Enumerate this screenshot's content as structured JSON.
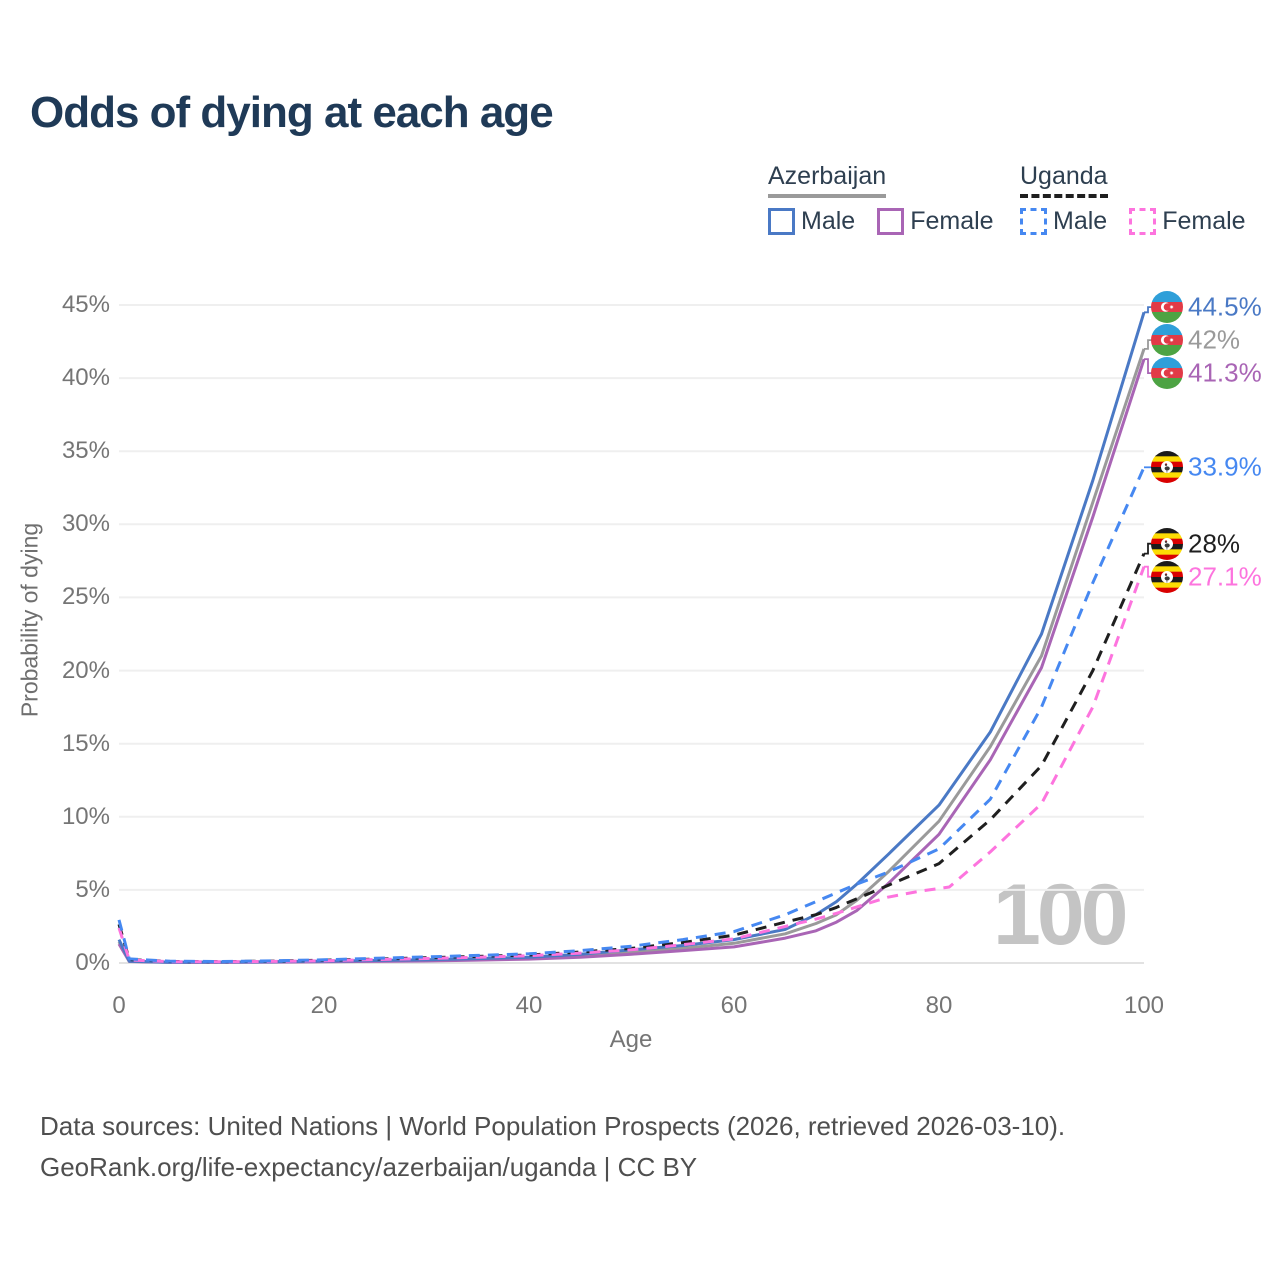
{
  "title": "Odds of dying at each age",
  "watermark": "100",
  "legend": {
    "groups": [
      {
        "label": "Azerbaijan",
        "line_style": "solid",
        "underline_color": "#9a9a9a",
        "items": [
          {
            "label": "Male",
            "color": "#4a79c5"
          },
          {
            "label": "Female",
            "color": "#a965b5"
          }
        ]
      },
      {
        "label": "Uganda",
        "line_style": "dashed",
        "underline_color": "#1f1f1f",
        "items": [
          {
            "label": "Male",
            "color": "#4688f1"
          },
          {
            "label": "Female",
            "color": "#fd74de"
          }
        ]
      }
    ]
  },
  "footer": {
    "line1": "Data sources: United Nations | World Population Prospects (2026, retrieved 2026-03-10).",
    "line2": "GeoRank.org/life-expectancy/azerbaijan/uganda | CC BY"
  },
  "chart_data": {
    "type": "line",
    "title": "Odds of dying at each age",
    "xlabel": "Age",
    "ylabel": "Probability of dying",
    "xlim": [
      0,
      100
    ],
    "ylim": [
      0,
      45
    ],
    "xticks": [
      0,
      20,
      40,
      60,
      80,
      100
    ],
    "yticks": [
      0,
      5,
      10,
      15,
      20,
      25,
      30,
      35,
      40,
      45
    ],
    "grid": true,
    "legend_position": "top-right",
    "y_unit": "%",
    "series": [
      {
        "slug": "azerbaijan-male",
        "name": "Azerbaijan — Male",
        "country": "Azerbaijan",
        "color": "#4a79c5",
        "dash": false,
        "flag": "az",
        "end_label": "44.5%",
        "end_value": 44.5,
        "points": [
          [
            0,
            1.6
          ],
          [
            1,
            0.12
          ],
          [
            5,
            0.05
          ],
          [
            10,
            0.06
          ],
          [
            15,
            0.09
          ],
          [
            20,
            0.13
          ],
          [
            25,
            0.17
          ],
          [
            30,
            0.22
          ],
          [
            35,
            0.3
          ],
          [
            40,
            0.4
          ],
          [
            45,
            0.6
          ],
          [
            50,
            0.9
          ],
          [
            55,
            1.2
          ],
          [
            60,
            1.6
          ],
          [
            65,
            2.3
          ],
          [
            68,
            3.3
          ],
          [
            70,
            4.2
          ],
          [
            72,
            5.4
          ],
          [
            75,
            7.4
          ],
          [
            80,
            10.8
          ],
          [
            85,
            15.8
          ],
          [
            90,
            22.5
          ],
          [
            95,
            33
          ],
          [
            100,
            44.5
          ]
        ]
      },
      {
        "slug": "azerbaijan-both",
        "name": "Azerbaijan — Both sexes",
        "country": "Azerbaijan",
        "color": "#9a9a9a",
        "dash": false,
        "flag": "az",
        "end_label": "42%",
        "end_value": 42,
        "points": [
          [
            0,
            1.45
          ],
          [
            1,
            0.11
          ],
          [
            5,
            0.045
          ],
          [
            10,
            0.05
          ],
          [
            15,
            0.08
          ],
          [
            20,
            0.11
          ],
          [
            25,
            0.14
          ],
          [
            30,
            0.18
          ],
          [
            35,
            0.25
          ],
          [
            40,
            0.33
          ],
          [
            45,
            0.5
          ],
          [
            50,
            0.75
          ],
          [
            55,
            1.0
          ],
          [
            60,
            1.35
          ],
          [
            65,
            2.0
          ],
          [
            68,
            2.7
          ],
          [
            70,
            3.3
          ],
          [
            72,
            4.3
          ],
          [
            75,
            6.2
          ],
          [
            80,
            9.7
          ],
          [
            85,
            14.8
          ],
          [
            90,
            21
          ],
          [
            95,
            31.5
          ],
          [
            100,
            42
          ]
        ]
      },
      {
        "slug": "azerbaijan-female",
        "name": "Azerbaijan — Female",
        "country": "Azerbaijan",
        "color": "#a965b5",
        "dash": false,
        "flag": "az",
        "end_label": "41.3%",
        "end_value": 41.3,
        "points": [
          [
            0,
            1.3
          ],
          [
            1,
            0.1
          ],
          [
            5,
            0.04
          ],
          [
            10,
            0.04
          ],
          [
            15,
            0.06
          ],
          [
            20,
            0.09
          ],
          [
            25,
            0.11
          ],
          [
            30,
            0.14
          ],
          [
            35,
            0.2
          ],
          [
            40,
            0.27
          ],
          [
            45,
            0.4
          ],
          [
            50,
            0.6
          ],
          [
            55,
            0.85
          ],
          [
            60,
            1.1
          ],
          [
            65,
            1.7
          ],
          [
            68,
            2.2
          ],
          [
            70,
            2.8
          ],
          [
            72,
            3.6
          ],
          [
            75,
            5.4
          ],
          [
            80,
            8.8
          ],
          [
            85,
            13.9
          ],
          [
            90,
            20.2
          ],
          [
            95,
            30.5
          ],
          [
            100,
            41.3
          ]
        ]
      },
      {
        "slug": "uganda-male",
        "name": "Uganda — Male",
        "country": "Uganda",
        "color": "#4688f1",
        "dash": true,
        "flag": "ug",
        "end_label": "33.9%",
        "end_value": 33.9,
        "points": [
          [
            0,
            2.95
          ],
          [
            1,
            0.28
          ],
          [
            5,
            0.12
          ],
          [
            10,
            0.1
          ],
          [
            15,
            0.15
          ],
          [
            20,
            0.22
          ],
          [
            25,
            0.32
          ],
          [
            30,
            0.42
          ],
          [
            35,
            0.52
          ],
          [
            40,
            0.63
          ],
          [
            45,
            0.85
          ],
          [
            50,
            1.15
          ],
          [
            55,
            1.6
          ],
          [
            60,
            2.15
          ],
          [
            65,
            3.3
          ],
          [
            68,
            4.2
          ],
          [
            70,
            4.8
          ],
          [
            72,
            5.4
          ],
          [
            75,
            6.2
          ],
          [
            80,
            7.8
          ],
          [
            85,
            11.2
          ],
          [
            90,
            17.5
          ],
          [
            95,
            26
          ],
          [
            100,
            33.9
          ]
        ]
      },
      {
        "slug": "uganda-both",
        "name": "Uganda — Both sexes",
        "country": "Uganda",
        "color": "#1f1f1f",
        "dash": true,
        "flag": "ug",
        "end_label": "28%",
        "end_value": 28,
        "points": [
          [
            0,
            2.65
          ],
          [
            1,
            0.24
          ],
          [
            5,
            0.1
          ],
          [
            10,
            0.09
          ],
          [
            15,
            0.13
          ],
          [
            20,
            0.19
          ],
          [
            25,
            0.27
          ],
          [
            30,
            0.36
          ],
          [
            35,
            0.45
          ],
          [
            40,
            0.55
          ],
          [
            45,
            0.75
          ],
          [
            50,
            1.0
          ],
          [
            55,
            1.4
          ],
          [
            60,
            1.9
          ],
          [
            65,
            2.8
          ],
          [
            68,
            3.3
          ],
          [
            70,
            3.8
          ],
          [
            75,
            5.3
          ],
          [
            80,
            6.8
          ],
          [
            85,
            9.8
          ],
          [
            90,
            13.5
          ],
          [
            95,
            20
          ],
          [
            100,
            28
          ]
        ]
      },
      {
        "slug": "uganda-female",
        "name": "Uganda — Female",
        "country": "Uganda",
        "color": "#fd74de",
        "dash": true,
        "flag": "ug",
        "end_label": "27.1%",
        "end_value": 27.1,
        "points": [
          [
            0,
            2.4
          ],
          [
            1,
            0.21
          ],
          [
            5,
            0.09
          ],
          [
            10,
            0.08
          ],
          [
            15,
            0.11
          ],
          [
            20,
            0.16
          ],
          [
            25,
            0.23
          ],
          [
            30,
            0.31
          ],
          [
            35,
            0.4
          ],
          [
            40,
            0.5
          ],
          [
            45,
            0.68
          ],
          [
            50,
            0.9
          ],
          [
            55,
            1.25
          ],
          [
            60,
            1.65
          ],
          [
            65,
            2.5
          ],
          [
            68,
            3.0
          ],
          [
            70,
            3.4
          ],
          [
            75,
            4.5
          ],
          [
            78,
            4.9
          ],
          [
            81,
            5.2
          ],
          [
            85,
            7.6
          ],
          [
            90,
            10.9
          ],
          [
            95,
            17.5
          ],
          [
            100,
            27.1
          ]
        ]
      }
    ]
  }
}
